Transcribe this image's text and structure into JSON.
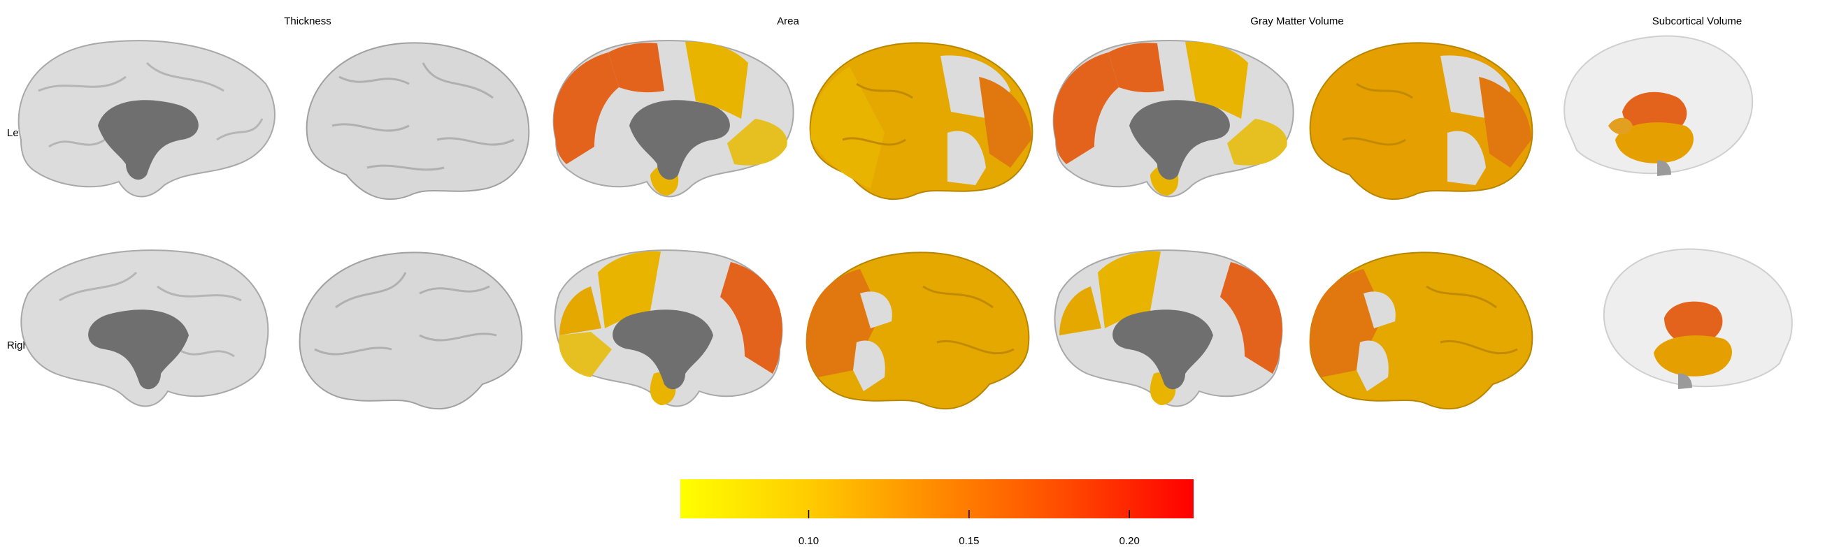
{
  "columns": {
    "thickness": "Thickness",
    "area": "Area",
    "gmv": "Gray Matter Volume",
    "subcortical": "Subcortical Volume"
  },
  "rows": {
    "left": "Left",
    "right": "Right"
  },
  "colorbar": {
    "min": 0.06,
    "max": 0.22,
    "colors": [
      "#ffff00",
      "#ffcc00",
      "#ff8a00",
      "#ff4a00",
      "#ff0000"
    ],
    "ticks": [
      "0.10",
      "0.15",
      "0.20"
    ],
    "tick_values": [
      0.1,
      0.15,
      0.2
    ]
  },
  "colors": {
    "unmapped_region": "#dcdcdc",
    "medial_wall": "#6f6f6f",
    "low": "#e8b400",
    "mid": "#e49a00",
    "high": "#e3631d"
  }
}
